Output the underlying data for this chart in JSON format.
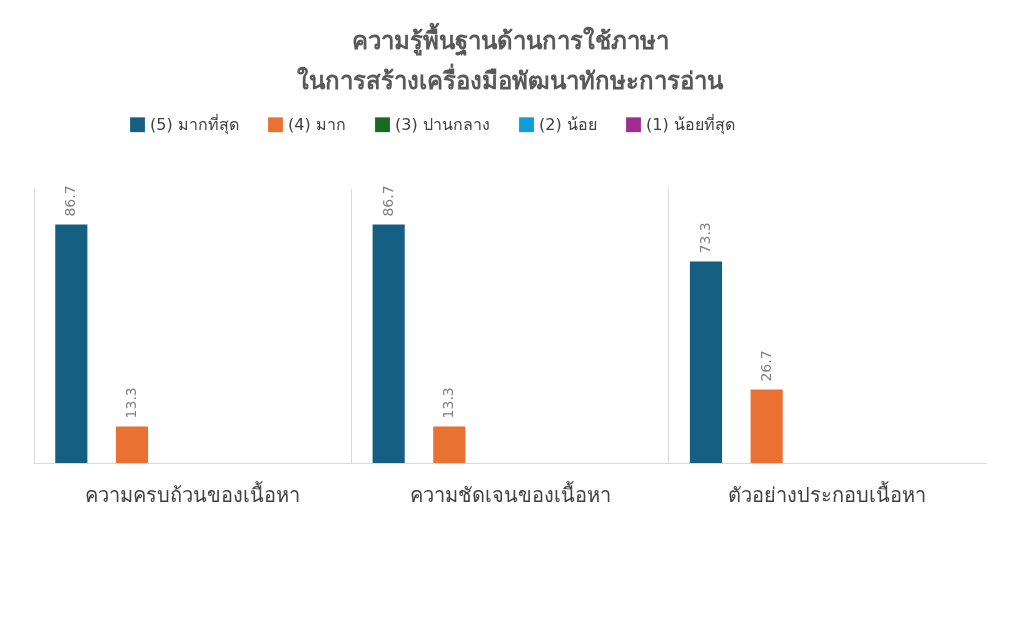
{
  "chart_data": {
    "type": "bar",
    "title": "ความรู้พื้นฐานด้านการใช้ภาษา\nในการสร้างเครื่องมือพัฒนาทักษะการอ่าน",
    "categories": [
      "ความครบถ้วนของเนื้อหา",
      "ความชัดเจนของเนื้อหา",
      "ตัวอย่างประกอบเนื้อหา"
    ],
    "series": [
      {
        "name": "(5) มากที่สุด",
        "color": "#156082",
        "values": [
          86.7,
          86.7,
          73.3
        ],
        "value_labels": [
          "86.7",
          "86.7",
          "73.3"
        ]
      },
      {
        "name": "(4) มาก",
        "color": "#e97132",
        "values": [
          13.3,
          13.3,
          26.7
        ],
        "value_labels": [
          "13.3",
          "13.3",
          "26.7"
        ]
      },
      {
        "name": "(3) ปานกลาง",
        "color": "#196b24",
        "values": [
          0,
          0,
          0
        ],
        "value_labels": [
          null,
          null,
          null
        ]
      },
      {
        "name": "(2) น้อย",
        "color": "#0f9ed5",
        "values": [
          0,
          0,
          0
        ],
        "value_labels": [
          null,
          null,
          null
        ]
      },
      {
        "name": "(1) น้อยที่สุด",
        "color": "#a02b93",
        "values": [
          0,
          0,
          0
        ],
        "value_labels": [
          null,
          null,
          null
        ]
      }
    ],
    "ylim": [
      0,
      100
    ],
    "grid": "x",
    "legend": "top",
    "tick_labels": "x"
  }
}
